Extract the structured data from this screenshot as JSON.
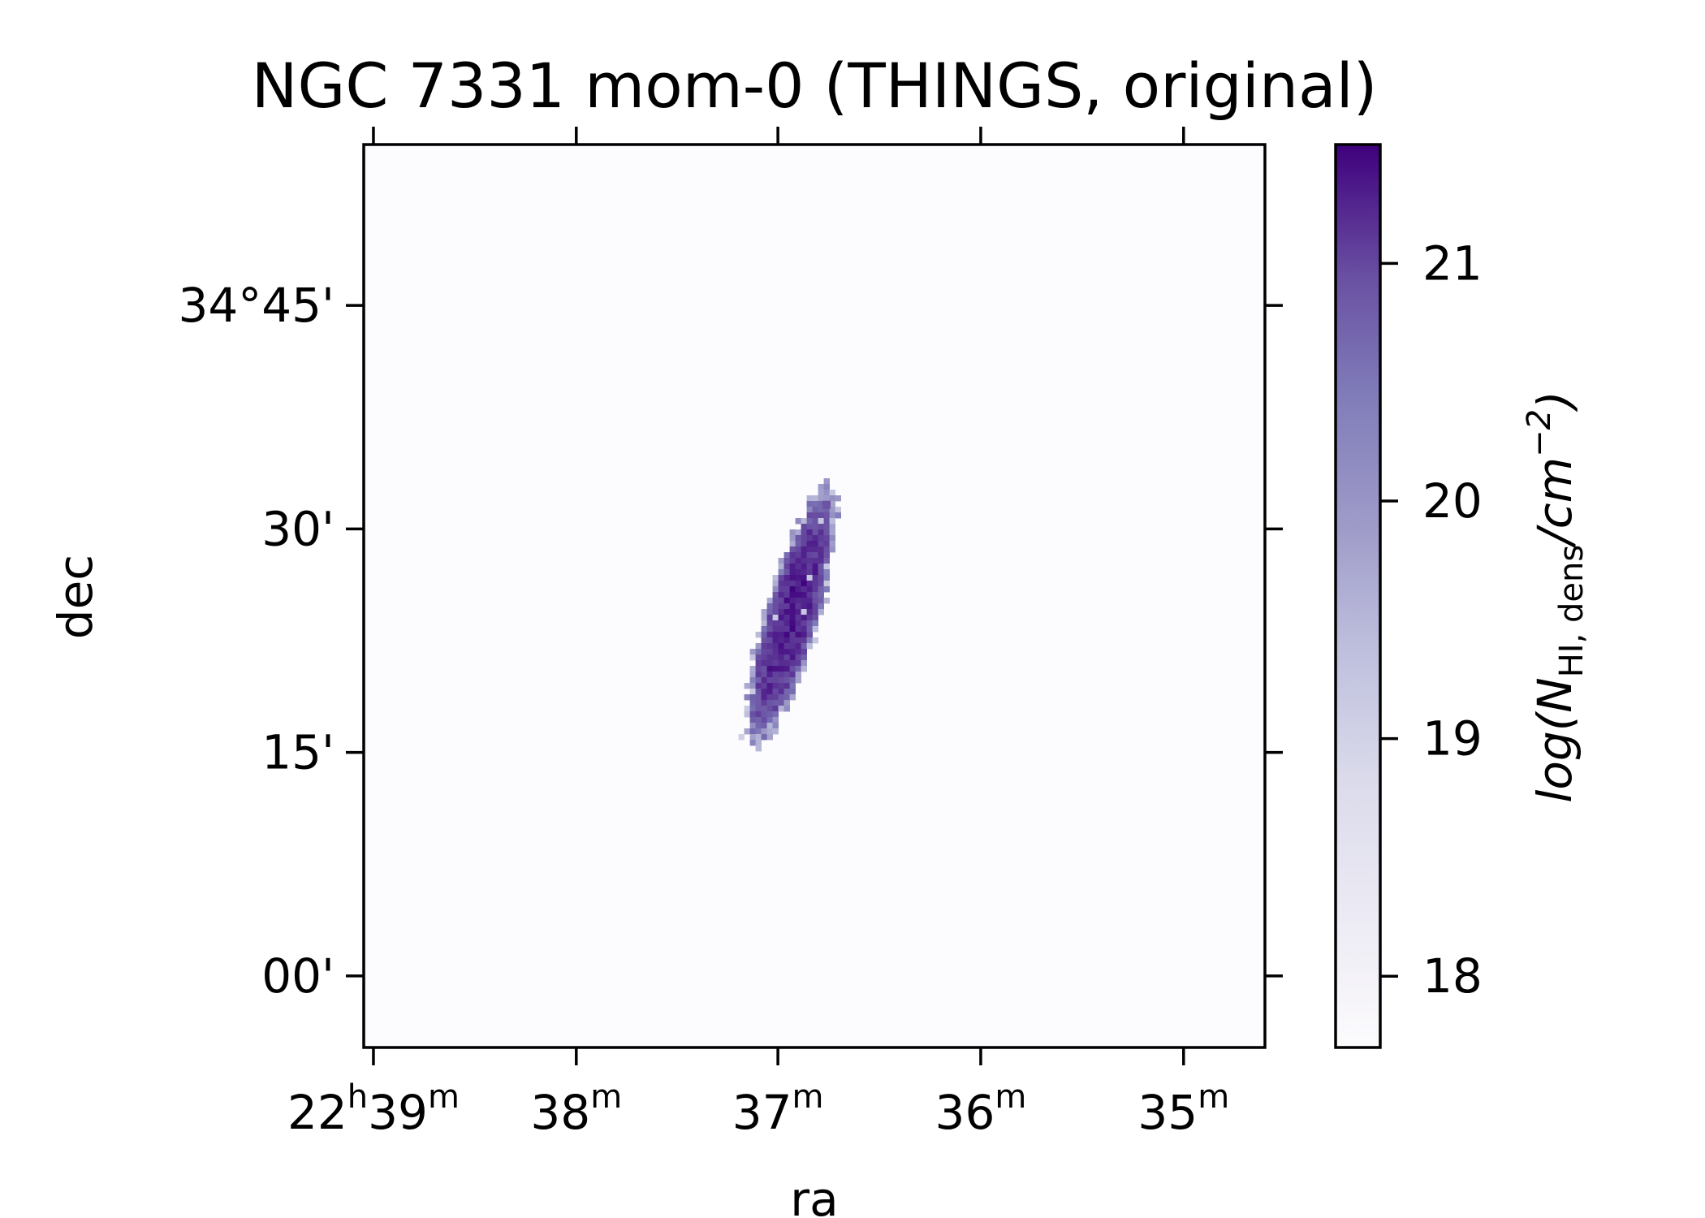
{
  "chart_data": {
    "type": "heatmap",
    "title": "NGC 7331 mom-0 (THINGS, original)",
    "xlabel": "ra",
    "ylabel": "dec",
    "x_axis": {
      "unit": "RA (hours:minutes)",
      "direction": "decreasing to the right",
      "ticks": [
        {
          "value": 22.65,
          "label_main": "22",
          "sup1": "h",
          "label_tail": "39",
          "sup2": "m"
        },
        {
          "value": 22.6333,
          "label_main": "38",
          "sup1": "m",
          "label_tail": "",
          "sup2": ""
        },
        {
          "value": 22.6167,
          "label_main": "37",
          "sup1": "m",
          "label_tail": "",
          "sup2": ""
        },
        {
          "value": 22.6,
          "label_main": "36",
          "sup1": "m",
          "label_tail": "",
          "sup2": ""
        },
        {
          "value": 22.5833,
          "label_main": "35",
          "sup1": "m",
          "label_tail": "",
          "sup2": ""
        }
      ],
      "range": [
        22.6508,
        22.5766
      ]
    },
    "y_axis": {
      "unit": "Dec (degrees)",
      "ticks": [
        {
          "value": 34.75,
          "label": "34°45'"
        },
        {
          "value": 34.5,
          "label": "30'"
        },
        {
          "value": 34.25,
          "label": "15'"
        },
        {
          "value": 34.0,
          "label": "00'"
        }
      ],
      "range": [
        33.92,
        34.93
      ]
    },
    "colorbar": {
      "label_prefix": "log(N",
      "label_sub": "HI, dens",
      "label_mid": "/cm",
      "label_sup": "−2",
      "label_suffix": ")",
      "range": [
        17.7,
        21.5
      ],
      "ticks": [
        {
          "value": 18,
          "label": "18"
        },
        {
          "value": 19,
          "label": "19"
        },
        {
          "value": 20,
          "label": "20"
        },
        {
          "value": 21,
          "label": "21"
        }
      ],
      "colormap": "Purples",
      "color_low": "#fcfbfd",
      "color_high": "#3f007d"
    },
    "background_value": 17.7,
    "source": {
      "center_ra": 22.6158,
      "center_dec": 34.405,
      "major_axis_deg": 0.31,
      "minor_axis_deg": 0.062,
      "peak_value": 21.3,
      "companion": {
        "ra": 22.6127,
        "dec": 34.527,
        "value": 20.9
      }
    },
    "grid": false
  }
}
